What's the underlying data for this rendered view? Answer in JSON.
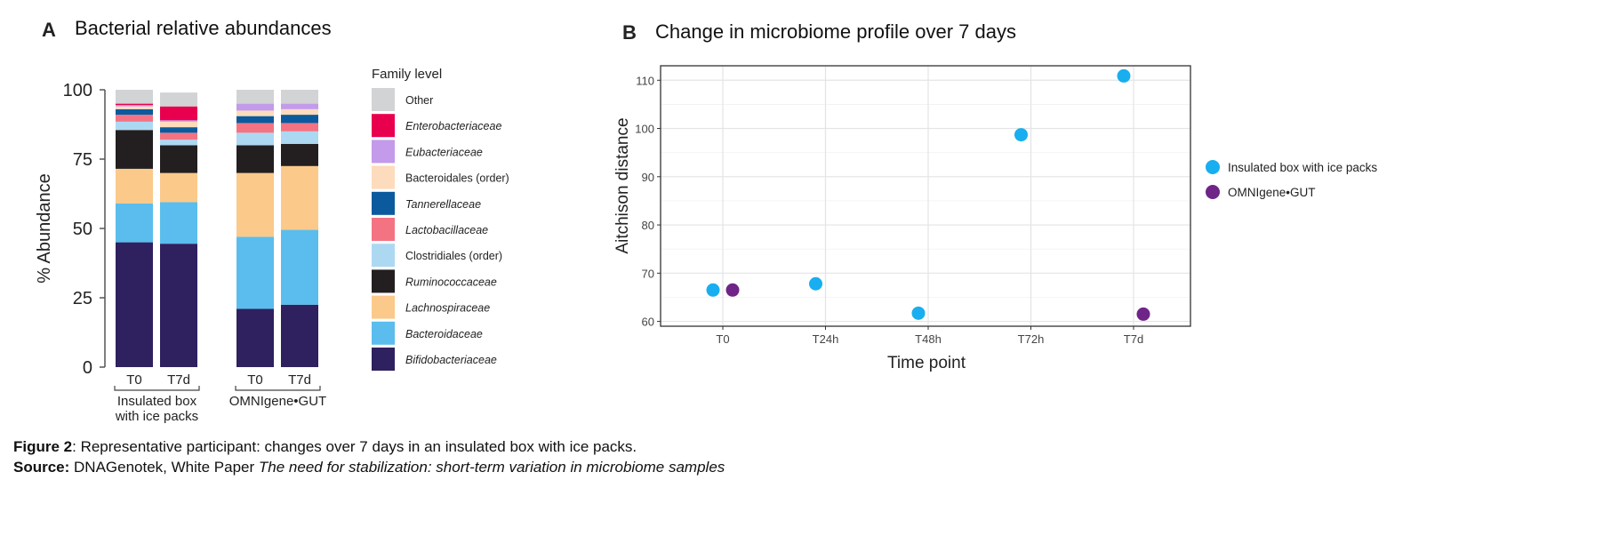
{
  "panel_a": {
    "letter": "A",
    "title": "Bacterial relative abundances"
  },
  "panel_b": {
    "letter": "B",
    "title": "Change in microbiome profile over 7 days"
  },
  "caption": {
    "figure_label": "Figure 2",
    "figure_text": ": Representative participant: changes over 7 days in an insulated box with ice packs.",
    "source_label": "Source:",
    "source_text": " DNAGenotek, White Paper ",
    "source_title": "The need for stabilization: short-term variation in microbiome samples"
  },
  "colors": {
    "Other": "#d1d3d4",
    "Enterobacteriaceae": "#e8004e",
    "Eubacteriaceae": "#c39bea",
    "Bacteroidales (order)": "#fcdcbc",
    "Tannerellaceae": "#0b5a9e",
    "Lactobacillaceae": "#f47383",
    "Clostridiales (order)": "#add8f2",
    "Ruminococcaceae": "#231f20",
    "Lachnospiraceae": "#fbc98a",
    "Bacteroidaceae": "#5abded",
    "Bifidobacteriaceae": "#2f205f",
    "insulated": "#18aeef",
    "omnigene": "#6f2488"
  },
  "chart_data": [
    {
      "type": "bar",
      "stacked": true,
      "ylabel": "% Abundance",
      "ylim": [
        0,
        100
      ],
      "yticks": [
        0,
        25,
        50,
        75,
        100
      ],
      "legend_title": "Family level",
      "legend_placement": "right",
      "legend_items": [
        {
          "name": "Other",
          "italic": false
        },
        {
          "name": "Enterobacteriaceae",
          "italic": true
        },
        {
          "name": "Eubacteriaceae",
          "italic": true
        },
        {
          "name": "Bacteroidales (order)",
          "italic": false
        },
        {
          "name": "Tannerellaceae",
          "italic": true
        },
        {
          "name": "Lactobacillaceae",
          "italic": true
        },
        {
          "name": "Clostridiales (order)",
          "italic": false
        },
        {
          "name": "Ruminococcaceae",
          "italic": true
        },
        {
          "name": "Lachnospiraceae",
          "italic": true
        },
        {
          "name": "Bacteroidaceae",
          "italic": true
        },
        {
          "name": "Bifidobacteriaceae",
          "italic": true
        }
      ],
      "groups": [
        {
          "name_lines": [
            "Insulated box",
            "with ice packs"
          ],
          "categories": [
            "T0",
            "T7d"
          ]
        },
        {
          "name_lines": [
            "OMNIgene•GUT"
          ],
          "categories": [
            "T0",
            "T7d"
          ]
        }
      ],
      "bars": [
        {
          "group": 0,
          "category": "T0",
          "segments": [
            {
              "family": "Bifidobacteriaceae",
              "value": 45
            },
            {
              "family": "Bacteroidaceae",
              "value": 14
            },
            {
              "family": "Lachnospiraceae",
              "value": 12.5
            },
            {
              "family": "Ruminococcaceae",
              "value": 14
            },
            {
              "family": "Clostridiales (order)",
              "value": 3
            },
            {
              "family": "Lactobacillaceae",
              "value": 2.5
            },
            {
              "family": "Tannerellaceae",
              "value": 2
            },
            {
              "family": "Bacteroidales (order)",
              "value": 1
            },
            {
              "family": "Eubacteriaceae",
              "value": 0.5
            },
            {
              "family": "Enterobacteriaceae",
              "value": 0.5
            },
            {
              "family": "Other",
              "value": 5
            }
          ]
        },
        {
          "group": 0,
          "category": "T7d",
          "segments": [
            {
              "family": "Bifidobacteriaceae",
              "value": 44.5
            },
            {
              "family": "Bacteroidaceae",
              "value": 15
            },
            {
              "family": "Lachnospiraceae",
              "value": 10.5
            },
            {
              "family": "Ruminococcaceae",
              "value": 10
            },
            {
              "family": "Clostridiales (order)",
              "value": 2
            },
            {
              "family": "Lactobacillaceae",
              "value": 2.5
            },
            {
              "family": "Tannerellaceae",
              "value": 2
            },
            {
              "family": "Bacteroidales (order)",
              "value": 2
            },
            {
              "family": "Eubacteriaceae",
              "value": 0.5
            },
            {
              "family": "Enterobacteriaceae",
              "value": 5
            },
            {
              "family": "Other",
              "value": 5
            }
          ]
        },
        {
          "group": 1,
          "category": "T0",
          "segments": [
            {
              "family": "Bifidobacteriaceae",
              "value": 21
            },
            {
              "family": "Bacteroidaceae",
              "value": 26
            },
            {
              "family": "Lachnospiraceae",
              "value": 23
            },
            {
              "family": "Ruminococcaceae",
              "value": 10
            },
            {
              "family": "Clostridiales (order)",
              "value": 4.5
            },
            {
              "family": "Lactobacillaceae",
              "value": 3.5
            },
            {
              "family": "Tannerellaceae",
              "value": 2.5
            },
            {
              "family": "Bacteroidales (order)",
              "value": 2
            },
            {
              "family": "Eubacteriaceae",
              "value": 2.5
            },
            {
              "family": "Enterobacteriaceae",
              "value": 0
            },
            {
              "family": "Other",
              "value": 5
            }
          ]
        },
        {
          "group": 1,
          "category": "T7d",
          "segments": [
            {
              "family": "Bifidobacteriaceae",
              "value": 22.5
            },
            {
              "family": "Bacteroidaceae",
              "value": 27
            },
            {
              "family": "Lachnospiraceae",
              "value": 23
            },
            {
              "family": "Ruminococcaceae",
              "value": 8
            },
            {
              "family": "Clostridiales (order)",
              "value": 4.5
            },
            {
              "family": "Lactobacillaceae",
              "value": 3
            },
            {
              "family": "Tannerellaceae",
              "value": 3
            },
            {
              "family": "Bacteroidales (order)",
              "value": 2
            },
            {
              "family": "Eubacteriaceae",
              "value": 2
            },
            {
              "family": "Enterobacteriaceae",
              "value": 0
            },
            {
              "family": "Other",
              "value": 5
            }
          ]
        }
      ]
    },
    {
      "type": "scatter",
      "xlabel": "Time point",
      "ylabel": "Aitchison distance",
      "categories": [
        "T0",
        "T24h",
        "T48h",
        "T72h",
        "T7d"
      ],
      "ylim": [
        59,
        113
      ],
      "yticks": [
        60,
        70,
        80,
        90,
        100,
        110
      ],
      "grid": true,
      "legend_placement": "right",
      "series": [
        {
          "name": "Insulated box with ice packs",
          "color_key": "insulated",
          "points": [
            {
              "x": "T0",
              "y": 66.5
            },
            {
              "x": "T24h",
              "y": 67.8
            },
            {
              "x": "T48h",
              "y": 61.7
            },
            {
              "x": "T72h",
              "y": 98.7
            },
            {
              "x": "T7d",
              "y": 110.9
            }
          ]
        },
        {
          "name": "OMNIgene•GUT",
          "color_key": "omnigene",
          "points": [
            {
              "x": "T0",
              "y": 66.5
            },
            {
              "x": "T7d",
              "y": 61.5
            }
          ]
        }
      ]
    }
  ]
}
